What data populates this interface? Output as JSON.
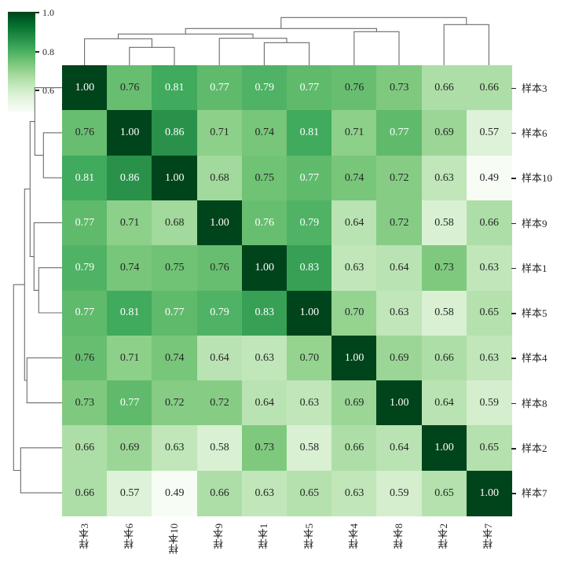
{
  "chart_data": {
    "type": "heatmap",
    "subtype": "clustermap",
    "title": "",
    "xlabel": "",
    "ylabel": "",
    "colormap": "Greens",
    "colormap_stops": [
      "#f7fcf5",
      "#e5f5e0",
      "#c7e9c0",
      "#a1d99b",
      "#74c476",
      "#41ab5d",
      "#238b45",
      "#006d2c",
      "#00441b"
    ],
    "vmin": 0.49,
    "vmax": 1.0,
    "row_labels": [
      "样本3",
      "样本6",
      "样本10",
      "样本9",
      "样本1",
      "样本5",
      "样本4",
      "样本8",
      "样本2",
      "样本7"
    ],
    "col_labels": [
      "样本3",
      "样本6",
      "样本10",
      "样本9",
      "样本1",
      "样本5",
      "样本4",
      "样本8",
      "样本2",
      "样本7"
    ],
    "values": [
      [
        1.0,
        0.76,
        0.81,
        0.77,
        0.79,
        0.77,
        0.76,
        0.73,
        0.66,
        0.66
      ],
      [
        0.76,
        1.0,
        0.86,
        0.71,
        0.74,
        0.81,
        0.71,
        0.77,
        0.69,
        0.57
      ],
      [
        0.81,
        0.86,
        1.0,
        0.68,
        0.75,
        0.77,
        0.74,
        0.72,
        0.63,
        0.49
      ],
      [
        0.77,
        0.71,
        0.68,
        1.0,
        0.76,
        0.79,
        0.64,
        0.72,
        0.58,
        0.66
      ],
      [
        0.79,
        0.74,
        0.75,
        0.76,
        1.0,
        0.83,
        0.63,
        0.64,
        0.73,
        0.63
      ],
      [
        0.77,
        0.81,
        0.77,
        0.79,
        0.83,
        1.0,
        0.7,
        0.63,
        0.58,
        0.65
      ],
      [
        0.76,
        0.71,
        0.74,
        0.64,
        0.63,
        0.7,
        1.0,
        0.69,
        0.66,
        0.63
      ],
      [
        0.73,
        0.77,
        0.72,
        0.72,
        0.64,
        0.63,
        0.69,
        1.0,
        0.64,
        0.59
      ],
      [
        0.66,
        0.69,
        0.63,
        0.58,
        0.73,
        0.58,
        0.66,
        0.64,
        1.0,
        0.65
      ],
      [
        0.66,
        0.57,
        0.49,
        0.66,
        0.63,
        0.65,
        0.63,
        0.59,
        0.65,
        1.0
      ]
    ],
    "annotations_format": "0.00",
    "light_text_threshold": 0.765,
    "light_text_overrides": [
      [
        3,
        4
      ]
    ],
    "colorbar": {
      "ticks": [
        1.0,
        0.8,
        0.6
      ],
      "tick_labels": [
        "1.0",
        "0.8",
        "0.6"
      ],
      "position": "top-left"
    },
    "dendrogram": {
      "leaf_order": [
        "样本3",
        "样本6",
        "样本10",
        "样本9",
        "样本1",
        "样本5",
        "样本4",
        "样本8",
        "样本2",
        "样本7"
      ],
      "merges": [
        {
          "left": "样本6",
          "right": "样本10",
          "height_rank": 1
        },
        {
          "left": "样本1",
          "right": "样本5",
          "height_rank": 2
        },
        {
          "left": "样本9",
          "right": "(样本1,样本5)",
          "height_rank": 3
        },
        {
          "left": "样本3",
          "right": "(样本6,样本10)",
          "height_rank": 4
        },
        {
          "left": "(样本3,样本6,样本10)",
          "right": "(样本9,样本1,样本5)",
          "height_rank": 5
        },
        {
          "left": "样本4",
          "right": "样本8",
          "height_rank": 6
        },
        {
          "left": "(样本3..样本5)",
          "right": "(样本4,样本8)",
          "height_rank": 7
        },
        {
          "left": "样本2",
          "right": "样本7",
          "height_rank": 8
        },
        {
          "left": "(样本3..样本8)",
          "right": "(样本2,样本7)",
          "height_rank": 9
        }
      ]
    },
    "grid": false,
    "legend": "colorbar"
  }
}
